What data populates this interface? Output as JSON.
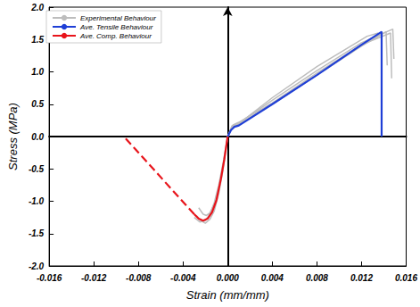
{
  "chart_data": {
    "type": "line",
    "x_label": "Strain (mm/mm)",
    "y_label": "Stress (MPa)",
    "xlim": [
      -0.016,
      0.016
    ],
    "xticks": [
      -0.016,
      -0.012,
      -0.008,
      -0.004,
      {
        "value": 0,
        "label": "0.000"
      },
      0.004,
      0.008,
      0.012,
      0.016
    ],
    "ylim": [
      -2,
      2
    ],
    "yticks": [
      {
        "value": -2,
        "label": "-2.0"
      },
      -1.5,
      {
        "value": -1,
        "label": "-1.0"
      },
      -0.5,
      {
        "value": 0,
        "label": "0.0"
      },
      0.5,
      {
        "value": 1,
        "label": "1.0"
      },
      1.5,
      {
        "value": 2,
        "label": "2.0"
      }
    ],
    "grid": false,
    "legend": "upper left",
    "series": [
      {
        "name": "Experimental Behaviour",
        "color": "#bdbdbd",
        "line_style": "solid",
        "x": [
          0,
          0.0004,
          0.001,
          0.004,
          0.008,
          0.012,
          0.0148,
          0.0149
        ],
        "values": [
          0,
          0.17,
          0.21,
          0.56,
          1.02,
          1.45,
          1.66,
          1.2
        ]
      },
      {
        "name": "Experimental Behaviour",
        "color": "#bdbdbd",
        "line_style": "solid",
        "x": [
          0,
          0.0004,
          0.001,
          0.004,
          0.008,
          0.012,
          0.0142,
          0.0143
        ],
        "values": [
          0,
          0.15,
          0.19,
          0.5,
          0.95,
          1.4,
          1.62,
          1.1
        ]
      },
      {
        "name": "Experimental Behaviour",
        "color": "#bdbdbd",
        "line_style": "solid",
        "x": [
          0,
          0.0004,
          0.001,
          0.004,
          0.008,
          0.0125,
          0.0135
        ],
        "values": [
          0,
          0.16,
          0.2,
          0.6,
          1.08,
          1.55,
          1.6
        ]
      },
      {
        "name": "Experimental Behaviour",
        "color": "#bdbdbd",
        "line_style": "solid",
        "x": [
          0,
          0.0005,
          0.001,
          0.004,
          0.008,
          0.012,
          0.0146,
          0.0147
        ],
        "values": [
          0,
          0.18,
          0.22,
          0.52,
          0.98,
          1.42,
          1.6,
          0.9
        ]
      },
      {
        "name": "Experimental Behaviour",
        "color": "#bdbdbd",
        "line_style": "solid",
        "x": [
          0,
          -0.0004,
          -0.0008,
          -0.0012,
          -0.0016,
          -0.0019,
          -0.0022,
          -0.0026
        ],
        "values": [
          0,
          -0.45,
          -0.8,
          -1.05,
          -1.18,
          -1.22,
          -1.2,
          -1.1
        ]
      },
      {
        "name": "Experimental Behaviour",
        "color": "#bdbdbd",
        "line_style": "solid",
        "x": [
          0,
          -0.0004,
          -0.0008,
          -0.0012,
          -0.0016,
          -0.002,
          -0.0024,
          -0.0028
        ],
        "values": [
          0,
          -0.5,
          -0.88,
          -1.15,
          -1.28,
          -1.34,
          -1.3,
          -1.22
        ]
      },
      {
        "name": "Experimental Behaviour",
        "color": "#bdbdbd",
        "line_style": "solid",
        "x": [
          0,
          -0.0004,
          -0.0008,
          -0.0012,
          -0.0016,
          -0.002,
          -0.0025,
          -0.003
        ],
        "values": [
          0,
          -0.4,
          -0.75,
          -1.02,
          -1.2,
          -1.3,
          -1.32,
          -1.25
        ]
      },
      {
        "name": "Ave. Tensile Behaviour",
        "color": "#1f3fd6",
        "line_style": "solid",
        "x": [
          0,
          0.0003,
          0.0006,
          0.001,
          0.004,
          0.008,
          0.012,
          0.0138,
          0.0138
        ],
        "values": [
          0,
          0.1,
          0.15,
          0.17,
          0.5,
          0.95,
          1.42,
          1.62,
          0
        ]
      },
      {
        "name": "Ave. Comp. Behaviour",
        "color": "#e8141b",
        "line_style": "solid",
        "x": [
          0,
          -0.0003,
          -0.0006,
          -0.001,
          -0.0014,
          -0.0018,
          -0.0022,
          -0.0026,
          -0.003
        ],
        "values": [
          0,
          -0.35,
          -0.65,
          -0.98,
          -1.17,
          -1.27,
          -1.3,
          -1.27,
          -1.2
        ]
      },
      {
        "name": "Ave. Comp. Behaviour",
        "color": "#e8141b",
        "line_style": "dashed",
        "x": [
          -0.003,
          -0.0093
        ],
        "values": [
          -1.2,
          0
        ]
      }
    ]
  }
}
